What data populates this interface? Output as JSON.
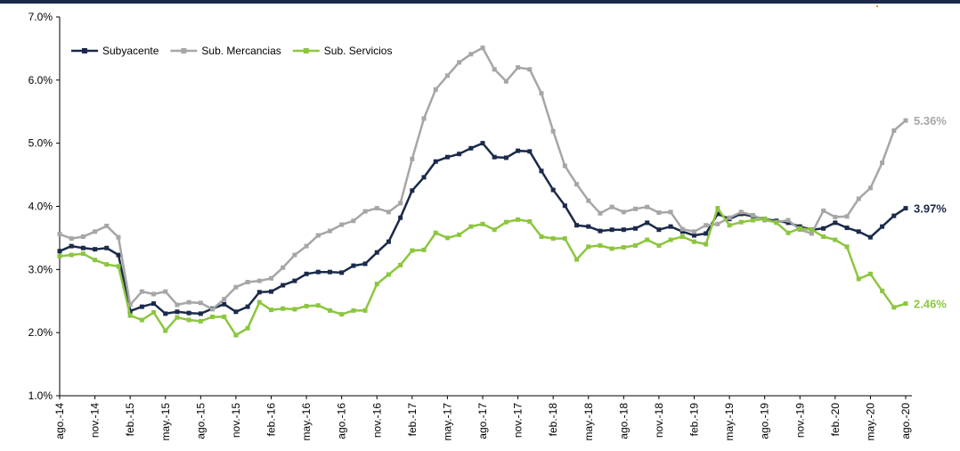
{
  "chart_data": {
    "type": "line",
    "categories": [
      "ago.-14",
      null,
      null,
      "nov.-14",
      null,
      null,
      "feb.-15",
      null,
      null,
      "may.-15",
      null,
      null,
      "ago.-15",
      null,
      null,
      "nov.-15",
      null,
      null,
      "feb.-16",
      null,
      null,
      "may.-16",
      null,
      null,
      "ago.-16",
      null,
      null,
      "nov.-16",
      null,
      null,
      "feb.-17",
      null,
      null,
      "may.-17",
      null,
      null,
      "ago.-17",
      null,
      null,
      "nov.-17",
      null,
      null,
      "feb.-18",
      null,
      null,
      "may.-18",
      null,
      null,
      "ago.-18",
      null,
      null,
      "nov.-18",
      null,
      null,
      "feb.-19",
      null,
      null,
      "may.-19",
      null,
      null,
      "ago.-19",
      null,
      null,
      "nov.-19",
      null,
      null,
      "feb.-20",
      null,
      null,
      "may.-20",
      null,
      null,
      "ago.-20"
    ],
    "series": [
      {
        "name": "Subyacente",
        "color": "#1b2a4a",
        "values": [
          3.29,
          3.37,
          3.34,
          3.32,
          3.34,
          3.23,
          2.34,
          2.41,
          2.46,
          2.3,
          2.33,
          2.31,
          2.3,
          2.38,
          2.45,
          2.33,
          2.41,
          2.64,
          2.65,
          2.75,
          2.82,
          2.93,
          2.96,
          2.96,
          2.95,
          3.06,
          3.09,
          3.27,
          3.44,
          3.82,
          4.25,
          4.46,
          4.71,
          4.78,
          4.83,
          4.92,
          5.0,
          4.78,
          4.77,
          4.88,
          4.87,
          4.56,
          4.26,
          4.01,
          3.7,
          3.68,
          3.61,
          3.63,
          3.63,
          3.65,
          3.74,
          3.63,
          3.68,
          3.6,
          3.54,
          3.57,
          3.88,
          3.8,
          3.88,
          3.84,
          3.8,
          3.77,
          3.74,
          3.68,
          3.63,
          3.65,
          3.74,
          3.66,
          3.6,
          3.51,
          3.68,
          3.85,
          3.97
        ],
        "value_labels": [
          null,
          null,
          null,
          null,
          null,
          null,
          null,
          null,
          null,
          null,
          null,
          null,
          null,
          null,
          null,
          null,
          null,
          null,
          null,
          null,
          null,
          null,
          null,
          null,
          null,
          null,
          null,
          null,
          null,
          null,
          null,
          null,
          null,
          null,
          null,
          null,
          null,
          null,
          null,
          null,
          null,
          null,
          null,
          null,
          null,
          null,
          null,
          null,
          null,
          null,
          null,
          null,
          null,
          null,
          null,
          null,
          null,
          null,
          null,
          null,
          null,
          null,
          null,
          null,
          null,
          null,
          null,
          null,
          null,
          null,
          null,
          null,
          "3.97%"
        ]
      },
      {
        "name": "Sub. Mercancias",
        "color": "#a6a6a6",
        "values": [
          3.56,
          3.49,
          3.52,
          3.6,
          3.69,
          3.51,
          2.44,
          2.65,
          2.61,
          2.65,
          2.44,
          2.48,
          2.47,
          2.37,
          2.53,
          2.72,
          2.8,
          2.82,
          2.86,
          3.03,
          3.23,
          3.37,
          3.54,
          3.61,
          3.71,
          3.77,
          3.92,
          3.97,
          3.91,
          4.05,
          4.75,
          5.39,
          5.85,
          6.07,
          6.28,
          6.41,
          6.51,
          6.17,
          5.98,
          6.2,
          6.17,
          5.79,
          5.19,
          4.64,
          4.35,
          4.09,
          3.89,
          3.99,
          3.91,
          3.96,
          3.99,
          3.9,
          3.91,
          3.64,
          3.6,
          3.7,
          3.72,
          3.82,
          3.91,
          3.86,
          3.78,
          3.75,
          3.78,
          3.63,
          3.57,
          3.93,
          3.83,
          3.84,
          4.12,
          4.29,
          4.69,
          5.2,
          5.36
        ],
        "value_labels": [
          null,
          null,
          null,
          null,
          null,
          null,
          null,
          null,
          null,
          null,
          null,
          null,
          null,
          null,
          null,
          null,
          null,
          null,
          null,
          null,
          null,
          null,
          null,
          null,
          null,
          null,
          null,
          null,
          null,
          null,
          null,
          null,
          null,
          null,
          null,
          null,
          null,
          null,
          null,
          null,
          null,
          null,
          null,
          null,
          null,
          null,
          null,
          null,
          null,
          null,
          null,
          null,
          null,
          null,
          null,
          null,
          null,
          null,
          null,
          null,
          null,
          null,
          null,
          null,
          null,
          null,
          null,
          null,
          null,
          null,
          null,
          null,
          "5.36%"
        ]
      },
      {
        "name": "Sub. Servicios",
        "color": "#8cc63f",
        "values": [
          3.21,
          3.23,
          3.25,
          3.15,
          3.08,
          3.05,
          2.27,
          2.2,
          2.32,
          2.03,
          2.24,
          2.2,
          2.18,
          2.25,
          2.25,
          1.96,
          2.07,
          2.48,
          2.36,
          2.38,
          2.37,
          2.42,
          2.43,
          2.35,
          2.29,
          2.35,
          2.35,
          2.77,
          2.92,
          3.07,
          3.3,
          3.31,
          3.58,
          3.5,
          3.55,
          3.68,
          3.72,
          3.63,
          3.75,
          3.79,
          3.76,
          3.52,
          3.49,
          3.49,
          3.16,
          3.36,
          3.38,
          3.33,
          3.35,
          3.38,
          3.47,
          3.38,
          3.47,
          3.52,
          3.44,
          3.4,
          3.97,
          3.7,
          3.75,
          3.78,
          3.8,
          3.74,
          3.58,
          3.65,
          3.63,
          3.52,
          3.47,
          3.36,
          2.85,
          2.93,
          2.66,
          2.4,
          2.46
        ],
        "value_labels": [
          null,
          null,
          null,
          null,
          null,
          null,
          null,
          null,
          null,
          null,
          null,
          null,
          null,
          null,
          null,
          null,
          null,
          null,
          null,
          null,
          null,
          null,
          null,
          null,
          null,
          null,
          null,
          null,
          null,
          null,
          null,
          null,
          null,
          null,
          null,
          null,
          null,
          null,
          null,
          null,
          null,
          null,
          null,
          null,
          null,
          null,
          null,
          null,
          null,
          null,
          null,
          null,
          null,
          null,
          null,
          null,
          null,
          null,
          null,
          null,
          null,
          null,
          null,
          null,
          null,
          null,
          null,
          null,
          null,
          null,
          null,
          null,
          "2.46%"
        ]
      }
    ],
    "ylim": [
      1,
      7
    ],
    "yticks": [
      {
        "value": 1,
        "label": "1.0%"
      },
      {
        "value": 2,
        "label": "2.0%"
      },
      {
        "value": 3,
        "label": "3.0%"
      },
      {
        "value": 4,
        "label": "4.0%"
      },
      {
        "value": 5,
        "label": "5.0%"
      },
      {
        "value": 6,
        "label": "6.0%"
      },
      {
        "value": 7,
        "label": "7.0%"
      }
    ],
    "grid": false,
    "legend": "top-left"
  }
}
